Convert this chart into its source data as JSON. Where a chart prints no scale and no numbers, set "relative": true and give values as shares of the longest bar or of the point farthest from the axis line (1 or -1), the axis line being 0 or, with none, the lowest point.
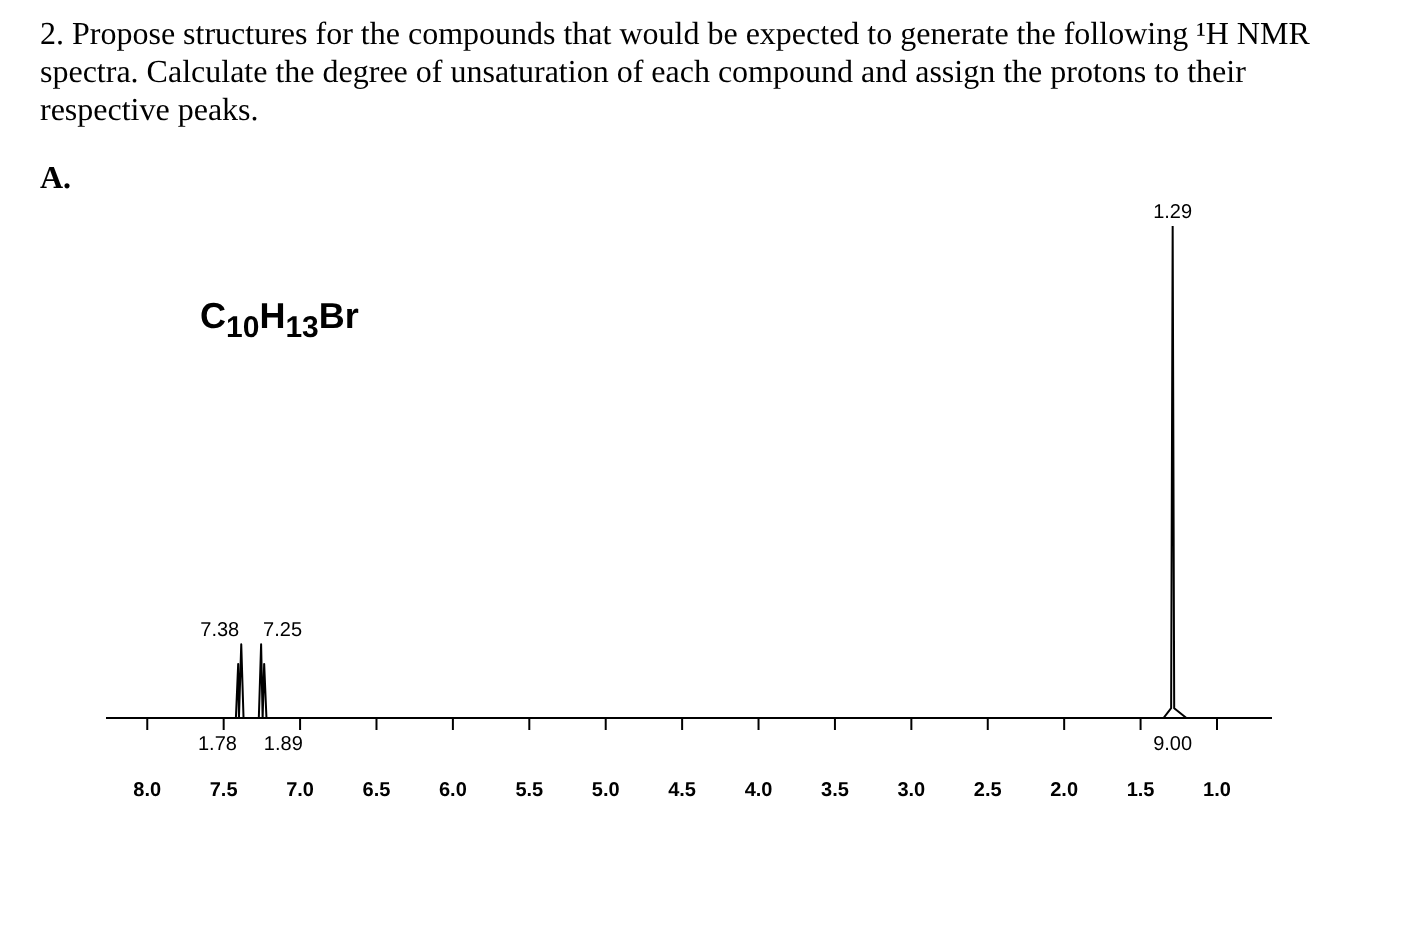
{
  "chart_data": {
    "type": "line",
    "title": "2.  Propose structures for the compounds that would be expected to generate the following ¹H NMR spectra.  Calculate the degree of unsaturation of each compound and assign the protons to their respective peaks.",
    "subtitle": "A.",
    "relative": true,
    "marker": "none",
    "x": [
      8.27,
      7.5,
      7.42,
      7.405,
      7.4,
      7.385,
      7.37,
      7.3,
      7.27,
      7.255,
      7.245,
      7.235,
      7.22,
      1.35,
      1.3,
      1.29,
      1.28,
      1.2,
      0.64
    ],
    "series": [
      {
        "color": "#000000",
        "values": [
          0,
          0,
          0,
          0.11,
          0,
          0.15,
          0,
          0,
          0,
          0.15,
          0,
          0.11,
          0,
          0,
          0.02,
          1,
          0.02,
          0,
          0
        ]
      }
    ],
    "xlim": [
      8.27,
      0.64
    ],
    "xticks": [
      {
        "value": 8,
        "label": "8.0"
      },
      {
        "value": 7.5,
        "label": "7.5"
      },
      {
        "value": 7,
        "label": "7.0"
      },
      {
        "value": 6.5,
        "label": "6.5"
      },
      {
        "value": 6,
        "label": "6.0"
      },
      {
        "value": 5.5,
        "label": "5.5"
      },
      {
        "value": 5,
        "label": "5.0"
      },
      {
        "value": 4.5,
        "label": "4.5"
      },
      {
        "value": 4,
        "label": "4.0"
      },
      {
        "value": 3.5,
        "label": "3.5"
      },
      {
        "value": 3,
        "label": "3.0"
      },
      {
        "value": 2.5,
        "label": "2.5"
      },
      {
        "value": 2,
        "label": "2.0"
      },
      {
        "value": 1.5,
        "label": "1.5"
      },
      {
        "value": 1,
        "label": "1.0"
      }
    ],
    "annotations": [
      "C$_{10}$H$_{13}$Br",
      {
        "text": "7.38",
        "x": 7.385,
        "y": 0.15
      },
      {
        "text": "7.25",
        "x": 7.255,
        "y": 0.15
      },
      {
        "text": "1.29",
        "x": 1.29,
        "y": 1
      },
      {
        "text": "1.78",
        "x": 7.4,
        "y": 0
      },
      {
        "text": "1.89",
        "x": 7.25,
        "y": 0
      },
      {
        "text": "9.00",
        "x": 1.29,
        "y": 0
      }
    ]
  }
}
